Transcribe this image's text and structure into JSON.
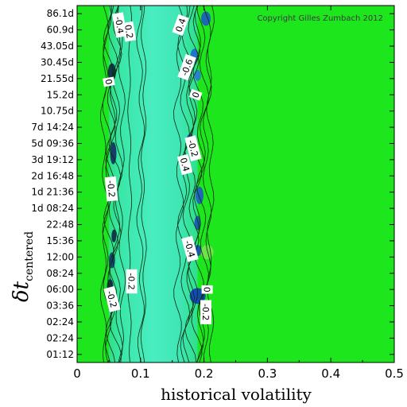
{
  "chart_data": {
    "type": "heatmap",
    "title": "",
    "copyright": "Copyright Gilles Zumbach 2012",
    "xlabel": "historical volatility",
    "ylabel": "δt",
    "ylabel_subscript": "centered",
    "xlim": [
      0,
      0.5
    ],
    "x_ticks": [
      "0",
      "0.1",
      "0.2",
      "0.3",
      "0.4",
      "0.5"
    ],
    "x_tick_values": [
      0,
      0.1,
      0.2,
      0.3,
      0.4,
      0.5
    ],
    "y_ticks": [
      "86.1d",
      "60.9d",
      "43.05d",
      "30.45d",
      "21.55d",
      "15.2d",
      "10.75d",
      "7d 14:24",
      "5d 09:36",
      "3d 19:12",
      "2d 16:48",
      "1d 21:36",
      "1d 08:24",
      "22:48",
      "15:36",
      "12:00",
      "08:24",
      "06:00",
      "03:36",
      "02:24",
      "02:24",
      "01:12"
    ],
    "background_color": "#1de61d",
    "band_color": "#3ee8b0",
    "band_x_range": [
      0.05,
      0.19
    ],
    "contour_labels": [
      {
        "text": "-0.4",
        "x": 0.067,
        "row": 0.7,
        "angle": 80
      },
      {
        "text": "0.2",
        "x": 0.082,
        "row": 1.1,
        "angle": 80
      },
      {
        "text": "0.4",
        "x": 0.163,
        "row": 0.7,
        "angle": -70
      },
      {
        "text": "-0.6",
        "x": 0.173,
        "row": 3.3,
        "angle": -70
      },
      {
        "text": "0",
        "x": 0.05,
        "row": 4.2,
        "angle": 80
      },
      {
        "text": "0",
        "x": 0.187,
        "row": 5.0,
        "angle": -70
      },
      {
        "text": "-0.2",
        "x": 0.183,
        "row": 8.3,
        "angle": 75
      },
      {
        "text": "0.4",
        "x": 0.17,
        "row": 9.3,
        "angle": 75
      },
      {
        "text": "-0.2",
        "x": 0.054,
        "row": 10.8,
        "angle": 85
      },
      {
        "text": "-0.4",
        "x": 0.178,
        "row": 14.5,
        "angle": 75
      },
      {
        "text": "-0.2",
        "x": 0.086,
        "row": 16.5,
        "angle": 90
      },
      {
        "text": "-0.2",
        "x": 0.055,
        "row": 17.6,
        "angle": 75
      },
      {
        "text": "0",
        "x": 0.205,
        "row": 17.0,
        "angle": 90
      },
      {
        "text": "-0.2",
        "x": 0.203,
        "row": 18.4,
        "angle": 90
      }
    ],
    "legend": "none",
    "grid": false
  }
}
